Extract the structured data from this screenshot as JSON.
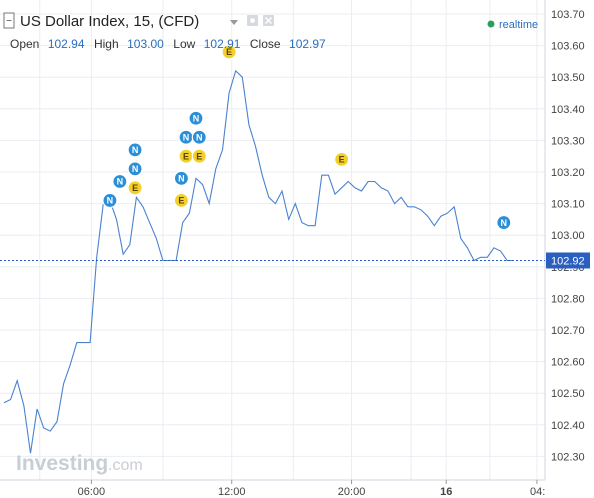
{
  "header": {
    "title": "US Dollar Index, 15, (CFD)",
    "open_label": "Open",
    "open_value": "102.94",
    "high_label": "High",
    "high_value": "103.00",
    "low_label": "Low",
    "low_value": "102.91",
    "close_label": "Close",
    "close_value": "102.97",
    "realtime_label": "realtime",
    "collapse_icon": "minus-square-icon",
    "dropdown_icon": "caret-down-icon",
    "settings_icon": "gear-icon",
    "close_icon": "close-icon"
  },
  "colors": {
    "line": "#4a82d0",
    "last_price": "#2a5fbf",
    "news_marker": "#2b8fd8",
    "event_marker": "#f2cf2a",
    "realtime_dot": "#2e9e5b"
  },
  "watermark": {
    "main": "Investing",
    "suffix": ".com"
  },
  "chart_data": {
    "type": "line",
    "x_ticks": [
      "06:00",
      "12:00",
      "20:00",
      "16",
      "04:"
    ],
    "y_ticks": [
      "103.70",
      "103.60",
      "103.50",
      "103.40",
      "103.30",
      "103.20",
      "103.10",
      "103.00",
      "102.92",
      "102.90",
      "102.80",
      "102.70",
      "102.60",
      "102.50",
      "102.40",
      "102.30"
    ],
    "ylim": [
      102.25,
      103.72
    ],
    "last_price": 102.92,
    "last_price_label": "102.92",
    "series": [
      {
        "values": [
          [
            0,
            102.47
          ],
          [
            1.0,
            102.48
          ],
          [
            2.0,
            102.54
          ],
          [
            3.0,
            102.46
          ],
          [
            4.0,
            102.31
          ],
          [
            5.0,
            102.45
          ],
          [
            6.0,
            102.39
          ],
          [
            7.0,
            102.38
          ],
          [
            8.0,
            102.41
          ],
          [
            9.0,
            102.53
          ],
          [
            10.0,
            102.59
          ],
          [
            11.0,
            102.66
          ],
          [
            13.0,
            102.66
          ],
          [
            14.0,
            102.93
          ],
          [
            15.0,
            103.1
          ],
          [
            16.0,
            103.11
          ],
          [
            17.0,
            103.05
          ],
          [
            18.0,
            102.94
          ],
          [
            19.0,
            102.97
          ],
          [
            20.0,
            103.12
          ],
          [
            21.0,
            103.09
          ],
          [
            22.0,
            103.04
          ],
          [
            23.0,
            102.99
          ],
          [
            24.0,
            102.92
          ],
          [
            26.0,
            102.92
          ],
          [
            27.0,
            103.04
          ],
          [
            28.0,
            103.07
          ],
          [
            29.0,
            103.18
          ],
          [
            30.0,
            103.16
          ],
          [
            31.0,
            103.1
          ],
          [
            32.0,
            103.21
          ],
          [
            33.0,
            103.27
          ],
          [
            34.0,
            103.45
          ],
          [
            35.0,
            103.52
          ],
          [
            36.0,
            103.5
          ],
          [
            37.0,
            103.35
          ],
          [
            38.0,
            103.28
          ],
          [
            39.0,
            103.19
          ],
          [
            40.0,
            103.12
          ],
          [
            41.0,
            103.1
          ],
          [
            42.0,
            103.14
          ],
          [
            43.0,
            103.05
          ],
          [
            44.0,
            103.1
          ],
          [
            45.0,
            103.04
          ],
          [
            46.0,
            103.03
          ],
          [
            47.0,
            103.03
          ],
          [
            48.0,
            103.19
          ],
          [
            49.0,
            103.19
          ],
          [
            50.0,
            103.13
          ],
          [
            51.0,
            103.15
          ],
          [
            52.0,
            103.17
          ],
          [
            53.0,
            103.15
          ],
          [
            54.0,
            103.14
          ],
          [
            55.0,
            103.17
          ],
          [
            56.0,
            103.17
          ],
          [
            57.0,
            103.15
          ],
          [
            58.0,
            103.14
          ],
          [
            59.0,
            103.1
          ],
          [
            60.0,
            103.12
          ],
          [
            61.0,
            103.09
          ],
          [
            62.0,
            103.09
          ],
          [
            63.0,
            103.08
          ],
          [
            64.0,
            103.06
          ],
          [
            65.0,
            103.03
          ],
          [
            66.0,
            103.06
          ],
          [
            67.0,
            103.07
          ],
          [
            68.0,
            103.09
          ],
          [
            69.0,
            102.99
          ],
          [
            70.0,
            102.96
          ],
          [
            71.0,
            102.92
          ],
          [
            72.0,
            102.93
          ],
          [
            73.0,
            102.93
          ],
          [
            74.0,
            102.96
          ],
          [
            75.0,
            102.95
          ],
          [
            76.0,
            102.92
          ],
          [
            77.0,
            102.92
          ]
        ]
      }
    ],
    "markers": [
      {
        "x": 16.0,
        "y": 103.11,
        "kind": "N"
      },
      {
        "x": 17.5,
        "y": 103.17,
        "kind": "N"
      },
      {
        "x": 19.8,
        "y": 103.27,
        "kind": "N"
      },
      {
        "x": 19.8,
        "y": 103.21,
        "kind": "N"
      },
      {
        "x": 19.8,
        "y": 103.15,
        "kind": "E"
      },
      {
        "x": 26.8,
        "y": 103.18,
        "kind": "N"
      },
      {
        "x": 26.8,
        "y": 103.11,
        "kind": "E"
      },
      {
        "x": 27.5,
        "y": 103.31,
        "kind": "N"
      },
      {
        "x": 27.5,
        "y": 103.25,
        "kind": "E"
      },
      {
        "x": 29.0,
        "y": 103.37,
        "kind": "N"
      },
      {
        "x": 29.5,
        "y": 103.31,
        "kind": "N"
      },
      {
        "x": 29.5,
        "y": 103.25,
        "kind": "E"
      },
      {
        "x": 34.0,
        "y": 103.58,
        "kind": "E"
      },
      {
        "x": 51.0,
        "y": 103.24,
        "kind": "E"
      },
      {
        "x": 75.5,
        "y": 103.04,
        "kind": "N"
      }
    ]
  }
}
